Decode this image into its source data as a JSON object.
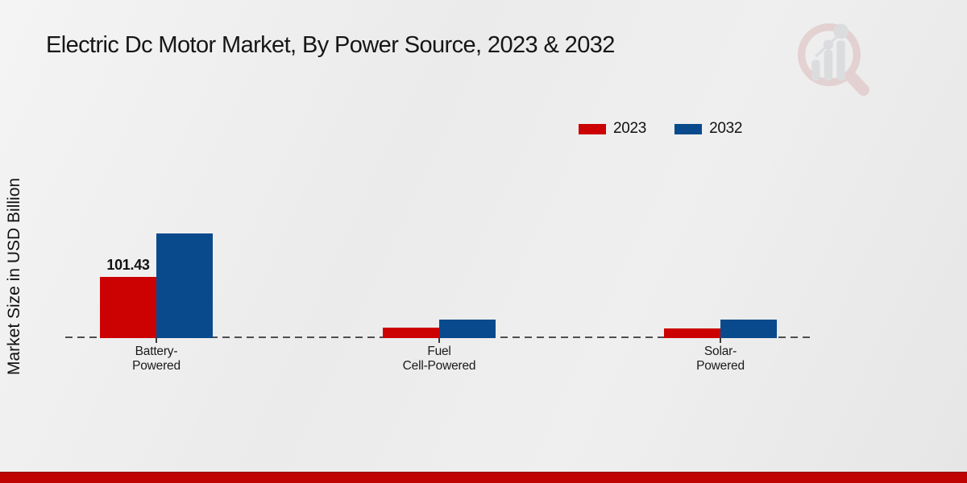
{
  "header": {
    "title": "Electric Dc Motor Market, By Power Source, 2023 & 2032"
  },
  "legend": [
    {
      "label": "2023",
      "color": "#cc0202"
    },
    {
      "label": "2032",
      "color": "#084a8c"
    }
  ],
  "watermark": {
    "name": "market-research-future-logo"
  },
  "footer": {
    "accent_color": "#bf0303"
  },
  "chart_data": {
    "type": "bar",
    "title": "Electric Dc Motor Market, By Power Source, 2023 & 2032",
    "xlabel": "",
    "ylabel": "Market Size in USD Billion",
    "categories": [
      "Battery-Powered",
      "Fuel Cell-Powered",
      "Solar-Powered"
    ],
    "categories_lines": [
      [
        "Battery-",
        "Powered"
      ],
      [
        "Fuel",
        "Cell-Powered"
      ],
      [
        "Solar-",
        "Powered"
      ]
    ],
    "series": [
      {
        "name": "2023",
        "color": "#cc0202",
        "values": [
          101.43,
          17.4,
          16.0
        ]
      },
      {
        "name": "2032",
        "color": "#084a8c",
        "values": [
          173.5,
          30.7,
          30.7
        ]
      }
    ],
    "data_labels": [
      {
        "series_index": 0,
        "category_index": 0,
        "text": "101.43"
      }
    ],
    "ylim": [
      0,
      190
    ],
    "grid": false,
    "legend_position": "top-right",
    "baseline_style": "dashed"
  }
}
